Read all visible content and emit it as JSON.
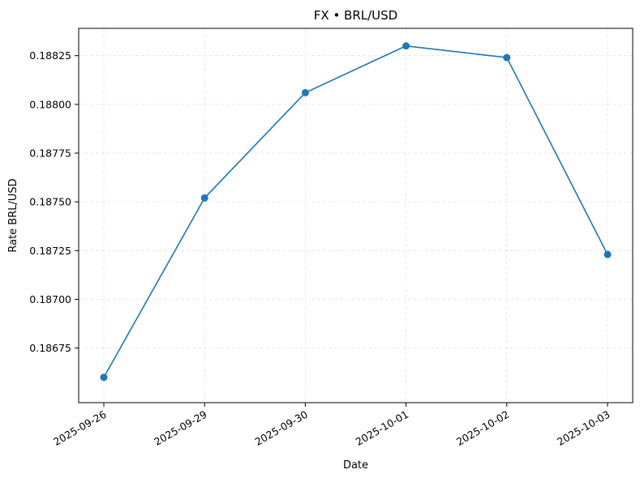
{
  "chart_data": {
    "type": "line",
    "title": "FX • BRL/USD",
    "xlabel": "Date",
    "ylabel": "Rate BRL/USD",
    "x": [
      "2025-09-26",
      "2025-09-29",
      "2025-09-30",
      "2025-10-01",
      "2025-10-02",
      "2025-10-03"
    ],
    "series": [
      {
        "values": [
          0.1866,
          0.18752,
          0.18806,
          0.1883,
          0.18824,
          0.18723
        ],
        "color": "#1f77b4",
        "marker": "circle"
      }
    ],
    "yticks": [
      "0.18675",
      "0.18700",
      "0.18725",
      "0.18750",
      "0.18775",
      "0.18800",
      "0.18825"
    ],
    "ylim": [
      0.18647,
      0.18839
    ],
    "grid": true,
    "grid_style": "dashed",
    "xtick_rotation": 30
  }
}
